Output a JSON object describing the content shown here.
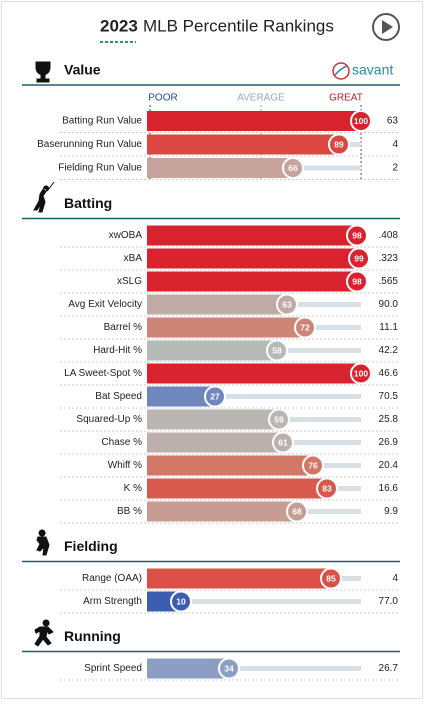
{
  "header": {
    "year": "2023",
    "title": "MLB Percentile Rankings"
  },
  "logo": "savant",
  "scale": {
    "poor": "POOR",
    "average": "AVERAGE",
    "great": "GREAT"
  },
  "sections": [
    {
      "title": "Value",
      "rows": [
        {
          "label": "Batting Run Value",
          "percentile": 100,
          "value": "63",
          "color": "#d8222d"
        },
        {
          "label": "Baserunning Run Value",
          "percentile": 89,
          "value": "4",
          "color": "#dc4640"
        },
        {
          "label": "Fielding Run Value",
          "percentile": 66,
          "value": "2",
          "color": "#c6a39c"
        }
      ]
    },
    {
      "title": "Batting",
      "rows": [
        {
          "label": "xwOBA",
          "percentile": 98,
          "value": ".408",
          "color": "#d8222d"
        },
        {
          "label": "xBA",
          "percentile": 99,
          "value": ".323",
          "color": "#d8222d"
        },
        {
          "label": "xSLG",
          "percentile": 98,
          "value": ".565",
          "color": "#d8222d"
        },
        {
          "label": "Avg Exit Velocity",
          "percentile": 63,
          "value": "90.0",
          "color": "#bfaaa5"
        },
        {
          "label": "Barrel %",
          "percentile": 72,
          "value": "11.1",
          "color": "#cd8578"
        },
        {
          "label": "Hard-Hit %",
          "percentile": 58,
          "value": "42.2",
          "color": "#b6bab7"
        },
        {
          "label": "LA Sweet-Spot %",
          "percentile": 100,
          "value": "46.6",
          "color": "#d8222d"
        },
        {
          "label": "Bat Speed",
          "percentile": 27,
          "value": "70.5",
          "color": "#6f87bd"
        },
        {
          "label": "Squared-Up %",
          "percentile": 59,
          "value": "25.8",
          "color": "#bab7b3"
        },
        {
          "label": "Chase %",
          "percentile": 61,
          "value": "26.9",
          "color": "#bdb0ac"
        },
        {
          "label": "Whiff %",
          "percentile": 76,
          "value": "20.4",
          "color": "#d27666"
        },
        {
          "label": "K %",
          "percentile": 83,
          "value": "16.6",
          "color": "#d8594e"
        },
        {
          "label": "BB %",
          "percentile": 68,
          "value": "9.9",
          "color": "#c99c93"
        }
      ]
    },
    {
      "title": "Fielding",
      "rows": [
        {
          "label": "Range (OAA)",
          "percentile": 85,
          "value": "4",
          "color": "#da4f46"
        },
        {
          "label": "Arm Strength",
          "percentile": 10,
          "value": "77.0",
          "color": "#3d5eb0"
        }
      ]
    },
    {
      "title": "Running",
      "rows": [
        {
          "label": "Sprint Speed",
          "percentile": 34,
          "value": "26.7",
          "color": "#8a9fc3"
        }
      ]
    }
  ]
}
